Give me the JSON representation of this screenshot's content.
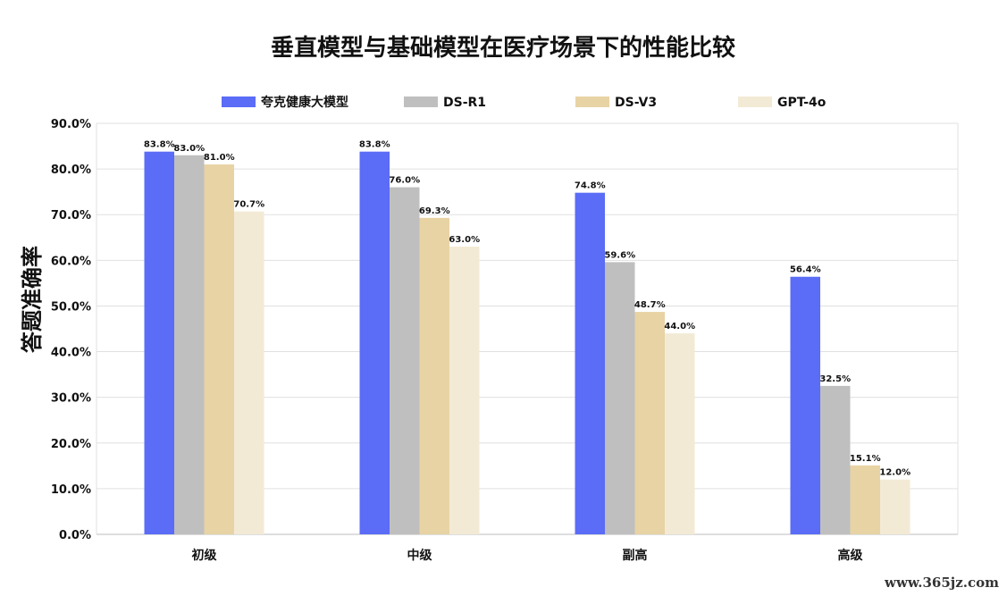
{
  "chart_data": {
    "type": "bar",
    "title": "垂直模型与基础模型在医疗场景下的性能比较",
    "xlabel": "",
    "ylabel": "答题准确率",
    "ylim": [
      0,
      90
    ],
    "yticks": [
      "0.0%",
      "10.0%",
      "20.0%",
      "30.0%",
      "40.0%",
      "50.0%",
      "60.0%",
      "70.0%",
      "80.0%",
      "90.0%"
    ],
    "categories": [
      "初级",
      "中级",
      "副高",
      "高级"
    ],
    "series": [
      {
        "name": "夸克健康大模型",
        "color": "#5b6cf7",
        "values": [
          83.8,
          83.8,
          74.8,
          56.4
        ],
        "labels": [
          "83.8%",
          "83.8%",
          "74.8%",
          "56.4%"
        ]
      },
      {
        "name": "DS-R1",
        "color": "#bfbfbf",
        "values": [
          83.0,
          76.0,
          59.6,
          32.5
        ],
        "labels": [
          "83.0%",
          "76.0%",
          "59.6%",
          "32.5%"
        ]
      },
      {
        "name": "DS-V3",
        "color": "#e8d3a5",
        "values": [
          81.0,
          69.3,
          48.7,
          15.1
        ],
        "labels": [
          "81.0%",
          "69.3%",
          "48.7%",
          "15.1%"
        ]
      },
      {
        "name": "GPT-4o",
        "color": "#f3ead6",
        "values": [
          70.7,
          63.0,
          44.0,
          12.0
        ],
        "labels": [
          "70.7%",
          "63.0%",
          "44.0%",
          "12.0%"
        ]
      }
    ],
    "grid": true,
    "legend": "top"
  },
  "watermark": "www.365jz.com"
}
